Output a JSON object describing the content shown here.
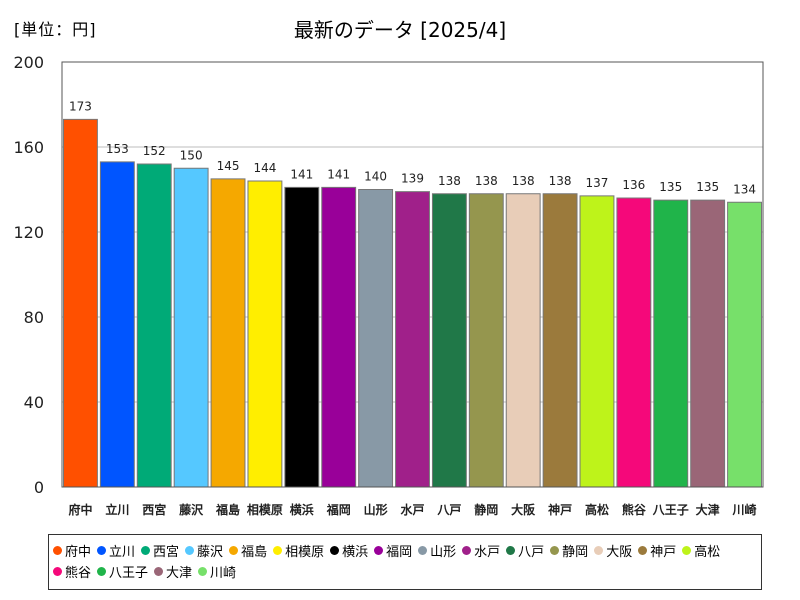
{
  "chart_data": {
    "type": "bar",
    "title": "最新のデータ [2025/4]",
    "unit_label": "[単位：円]",
    "xlabel": "",
    "ylabel": "",
    "ylim": [
      0,
      200
    ],
    "yticks": [
      0,
      40,
      80,
      120,
      160,
      200
    ],
    "grid": true,
    "legend_position": "bottom",
    "categories": [
      "府中",
      "立川",
      "西宮",
      "藤沢",
      "福島",
      "相模原",
      "横浜",
      "福岡",
      "山形",
      "水戸",
      "八戸",
      "静岡",
      "大阪",
      "神戸",
      "高松",
      "熊谷",
      "八王子",
      "大津",
      "川崎"
    ],
    "values": [
      173,
      153,
      152,
      150,
      145,
      144,
      141,
      141,
      140,
      139,
      138,
      138,
      138,
      138,
      137,
      136,
      135,
      135,
      134
    ],
    "colors": [
      "#ff5000",
      "#0055ff",
      "#00aa77",
      "#55c8ff",
      "#f5a800",
      "#ffee00",
      "#000000",
      "#990099",
      "#8899a6",
      "#a0208a",
      "#207848",
      "#95964e",
      "#e8cdb8",
      "#9b7a3c",
      "#bef31a",
      "#f5087a",
      "#20b44a",
      "#9a6677",
      "#77e06a"
    ]
  }
}
